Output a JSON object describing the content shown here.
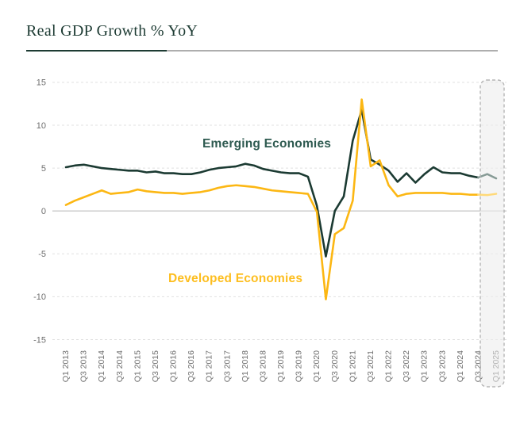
{
  "page": {
    "title": "Real GDP Growth % YoY"
  },
  "chart_data": {
    "type": "line",
    "title": "Real GDP Growth % YoY",
    "xlabel": "",
    "ylabel": "",
    "ylim": [
      -15,
      15
    ],
    "yticks": [
      15,
      10,
      5,
      0,
      -5,
      -10,
      -15
    ],
    "grid": "horizontal, dashed, zero line solid",
    "legend_position": "inline annotations on lines",
    "x_tick_labels": [
      "Q1 2013",
      "Q3 2013",
      "Q1 2014",
      "Q3 2014",
      "Q1 2015",
      "Q3 2015",
      "Q1 2016",
      "Q3 2016",
      "Q1 2017",
      "Q3 2017",
      "Q1 2018",
      "Q3 2018",
      "Q1 2019",
      "Q3 2019",
      "Q1 2020",
      "Q3 2020",
      "Q1 2021",
      "Q3 2021",
      "Q1 2022",
      "Q3 2022",
      "Q1 2023",
      "Q3 2023",
      "Q1 2024",
      "Q3 2024",
      "Q1 2025"
    ],
    "x_frequency": "quarterly",
    "x_start": "Q1 2013",
    "x_end": "Q1 2025",
    "forecast_start_index": 46,
    "highlight": {
      "label": "Q1 2025",
      "style": "dashed rounded box over final period",
      "fill": "#eeeeee",
      "border": "#b5b5b5"
    },
    "series": [
      {
        "name": "Emerging Economies",
        "color": "#1b3a32",
        "faded_color": "#879b96",
        "values": [
          5.1,
          5.3,
          5.4,
          5.2,
          5.0,
          4.9,
          4.8,
          4.7,
          4.7,
          4.5,
          4.6,
          4.4,
          4.4,
          4.3,
          4.3,
          4.5,
          4.8,
          5.0,
          5.1,
          5.2,
          5.5,
          5.3,
          4.9,
          4.7,
          4.5,
          4.4,
          4.4,
          4.0,
          0.6,
          -5.3,
          0.0,
          1.7,
          8.2,
          11.8,
          6.0,
          5.4,
          4.7,
          3.4,
          4.4,
          3.3,
          4.3,
          5.1,
          4.5,
          4.4,
          4.4,
          4.1,
          3.9,
          4.3,
          3.8
        ]
      },
      {
        "name": "Developed Economies",
        "color": "#fcb713",
        "faded_color": "#ffd978",
        "values": [
          0.7,
          1.2,
          1.6,
          2.0,
          2.4,
          2.0,
          2.1,
          2.2,
          2.5,
          2.3,
          2.2,
          2.1,
          2.1,
          2.0,
          2.1,
          2.2,
          2.4,
          2.7,
          2.9,
          3.0,
          2.9,
          2.8,
          2.6,
          2.4,
          2.3,
          2.2,
          2.1,
          2.0,
          -0.1,
          -10.3,
          -2.7,
          -2.0,
          1.2,
          13.0,
          5.2,
          5.9,
          3.0,
          1.7,
          2.0,
          2.1,
          2.1,
          2.1,
          2.1,
          2.0,
          2.0,
          1.9,
          1.9,
          1.85,
          2.0
        ]
      }
    ],
    "annotations": [
      {
        "text": "Emerging Economies",
        "color": "#2e5a50"
      },
      {
        "text": "Developed Economies",
        "color": "#fdbe1f"
      }
    ],
    "axis_label_color": "#6e6e6e",
    "highlight_tick_color": "#b4b4b4"
  }
}
